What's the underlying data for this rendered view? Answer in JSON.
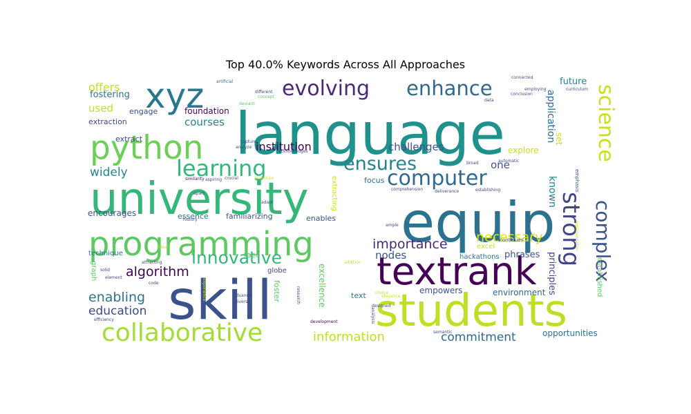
{
  "chart_data": {
    "type": "wordcloud",
    "title": "Top 40.0% Keywords Across All Approaches",
    "colormap": "viridis",
    "background": "#ffffff",
    "words": [
      {
        "text": "language",
        "weight": 1.0,
        "color": "#21918c"
      },
      {
        "text": "equip",
        "weight": 0.98,
        "color": "#2c728e"
      },
      {
        "text": "university",
        "weight": 0.92,
        "color": "#35b779"
      },
      {
        "text": "skill",
        "weight": 0.9,
        "color": "#3b528b"
      },
      {
        "text": "students",
        "weight": 0.84,
        "color": "#bddf26"
      },
      {
        "text": "textrank",
        "weight": 0.8,
        "color": "#440154"
      },
      {
        "text": "programming",
        "weight": 0.72,
        "color": "#5ec962"
      },
      {
        "text": "python",
        "weight": 0.68,
        "color": "#6ece58"
      },
      {
        "text": "xyz",
        "weight": 0.66,
        "color": "#2a788e"
      },
      {
        "text": "collaborative",
        "weight": 0.6,
        "color": "#a5db36"
      },
      {
        "text": "strong",
        "weight": 0.52,
        "color": "#414487"
      },
      {
        "text": "science",
        "weight": 0.5,
        "color": "#c8e020"
      },
      {
        "text": "complex",
        "weight": 0.44,
        "color": "#3b528b"
      },
      {
        "text": "learning",
        "weight": 0.44,
        "color": "#35b779"
      },
      {
        "text": "computer",
        "weight": 0.43,
        "color": "#31688e"
      },
      {
        "text": "evolving",
        "weight": 0.42,
        "color": "#482878"
      },
      {
        "text": "enhance",
        "weight": 0.42,
        "color": "#31688e"
      },
      {
        "text": "ensures",
        "weight": 0.4,
        "color": "#26828e"
      },
      {
        "text": "innovative",
        "weight": 0.37,
        "color": "#35b779"
      },
      {
        "text": "algorithm",
        "weight": 0.29,
        "color": "#440154"
      },
      {
        "text": "importance",
        "weight": 0.29,
        "color": "#482878"
      },
      {
        "text": "necessary",
        "weight": 0.29,
        "color": "#dde318"
      },
      {
        "text": "enabling",
        "weight": 0.28,
        "color": "#2c728e"
      },
      {
        "text": "education",
        "weight": 0.26,
        "color": "#3e4989"
      },
      {
        "text": "information",
        "weight": 0.27,
        "color": "#bddf26"
      },
      {
        "text": "commitment",
        "weight": 0.26,
        "color": "#31688e"
      },
      {
        "text": "institution",
        "weight": 0.23,
        "color": "#440154"
      },
      {
        "text": "widely",
        "weight": 0.24,
        "color": "#26828e"
      },
      {
        "text": "challenges",
        "weight": 0.22,
        "color": "#3b528b"
      },
      {
        "text": "courses",
        "weight": 0.21,
        "color": "#26828e"
      },
      {
        "text": "offers",
        "weight": 0.22,
        "color": "#c8e020"
      },
      {
        "text": "used",
        "weight": 0.2,
        "color": "#bddf26"
      },
      {
        "text": "one",
        "weight": 0.21,
        "color": "#3b528b"
      },
      {
        "text": "nodes",
        "weight": 0.2,
        "color": "#3b528b"
      },
      {
        "text": "application",
        "weight": 0.2,
        "color": "#31688e"
      },
      {
        "text": "known",
        "weight": 0.2,
        "color": "#26828e"
      },
      {
        "text": "principles",
        "weight": 0.18,
        "color": "#3e4989"
      },
      {
        "text": "fostering",
        "weight": 0.17,
        "color": "#2c728e"
      },
      {
        "text": "future",
        "weight": 0.17,
        "color": "#26828e"
      },
      {
        "text": "empowers",
        "weight": 0.16,
        "color": "#3b528b"
      },
      {
        "text": "environment",
        "weight": 0.16,
        "color": "#31688e"
      },
      {
        "text": "opportunities",
        "weight": 0.15,
        "color": "#2c728e"
      },
      {
        "text": "excellence",
        "weight": 0.16,
        "color": "#5ec962"
      },
      {
        "text": "phrases",
        "weight": 0.15,
        "color": "#3b528b"
      },
      {
        "text": "essence",
        "weight": 0.15,
        "color": "#2c728e"
      },
      {
        "text": "encourages",
        "weight": 0.15,
        "color": "#3b528b"
      },
      {
        "text": "familiarizing",
        "weight": 0.15,
        "color": "#3b528b"
      },
      {
        "text": "enables",
        "weight": 0.15,
        "color": "#3b528b"
      },
      {
        "text": "foundation",
        "weight": 0.14,
        "color": "#440154"
      },
      {
        "text": "engage",
        "weight": 0.14,
        "color": "#3e4989"
      },
      {
        "text": "extraction",
        "weight": 0.13,
        "color": "#3e4989"
      },
      {
        "text": "focus",
        "weight": 0.14,
        "color": "#2c728e"
      },
      {
        "text": "explore",
        "weight": 0.13,
        "color": "#c8e020"
      },
      {
        "text": "set",
        "weight": 0.13,
        "color": "#c8e020"
      },
      {
        "text": "extract",
        "weight": 0.12,
        "color": "#3e4989"
      },
      {
        "text": "face",
        "weight": 0.12,
        "color": "#5ec962"
      },
      {
        "text": "technique",
        "weight": 0.12,
        "color": "#2c728e"
      },
      {
        "text": "hackathons",
        "weight": 0.11,
        "color": "#2c728e"
      },
      {
        "text": "excel",
        "weight": 0.11,
        "color": "#c8e020"
      },
      {
        "text": "foster",
        "weight": 0.12,
        "color": "#5ec962"
      },
      {
        "text": "established",
        "weight": 0.11,
        "color": "#5ec962"
      },
      {
        "text": "globe",
        "weight": 0.11,
        "color": "#3e4989"
      },
      {
        "text": "graph",
        "weight": 0.1,
        "color": "#5ec962"
      },
      {
        "text": "text",
        "weight": 0.12,
        "color": "#2c728e"
      },
      {
        "text": "extracting",
        "weight": 0.1,
        "color": "#c8e020"
      },
      {
        "text": "emphasis",
        "weight": 0.08,
        "color": "#3b528b"
      },
      {
        "text": "continues",
        "weight": 0.07,
        "color": "#3b528b"
      },
      {
        "text": "representation",
        "weight": 0.06,
        "color": "#c8e020"
      },
      {
        "text": "experience",
        "weight": 0.07,
        "color": "#c8e020"
      },
      {
        "text": "connected",
        "weight": 0.06,
        "color": "#3b528b"
      },
      {
        "text": "employing",
        "weight": 0.06,
        "color": "#3e4989"
      },
      {
        "text": "conclusion",
        "weight": 0.06,
        "color": "#3e4989"
      },
      {
        "text": "curriculum",
        "weight": 0.06,
        "color": "#3e4989"
      },
      {
        "text": "artificial",
        "weight": 0.06,
        "color": "#2c728e"
      },
      {
        "text": "different",
        "weight": 0.06,
        "color": "#3e4989"
      },
      {
        "text": "concept",
        "weight": 0.06,
        "color": "#5ec962"
      },
      {
        "text": "deviant",
        "weight": 0.06,
        "color": "#5ec962"
      },
      {
        "text": "capture",
        "weight": 0.06,
        "color": "#3e4989"
      },
      {
        "text": "analyze",
        "weight": 0.06,
        "color": "#3e4989"
      },
      {
        "text": "acknowledges",
        "weight": 0.06,
        "color": "#3e4989"
      },
      {
        "text": "similarity",
        "weight": 0.06,
        "color": "#440154"
      },
      {
        "text": "aspiring",
        "weight": 0.06,
        "color": "#3e4989"
      },
      {
        "text": "crucial",
        "weight": 0.06,
        "color": "#3e4989"
      },
      {
        "text": "proactive",
        "weight": 0.06,
        "color": "#c8e020"
      },
      {
        "text": "adapt",
        "weight": 0.06,
        "color": "#3e4989"
      },
      {
        "text": "broad",
        "weight": 0.06,
        "color": "#3e4989"
      },
      {
        "text": "automatic",
        "weight": 0.06,
        "color": "#3e4989"
      },
      {
        "text": "comprehension",
        "weight": 0.06,
        "color": "#3e4989"
      },
      {
        "text": "deliverance",
        "weight": 0.06,
        "color": "#3e4989"
      },
      {
        "text": "establishing",
        "weight": 0.06,
        "color": "#3e4989"
      },
      {
        "text": "apart",
        "weight": 0.06,
        "color": "#3e4989"
      },
      {
        "text": "history",
        "weight": 0.06,
        "color": "#3e4989"
      },
      {
        "text": "ideal",
        "weight": 0.06,
        "color": "#c8e020"
      },
      {
        "text": "attracting",
        "weight": 0.06,
        "color": "#3e4989"
      },
      {
        "text": "solid",
        "weight": 0.06,
        "color": "#3e4989"
      },
      {
        "text": "element",
        "weight": 0.06,
        "color": "#3e4989"
      },
      {
        "text": "efficiency",
        "weight": 0.06,
        "color": "#3e4989"
      },
      {
        "text": "code",
        "weight": 0.06,
        "color": "#3e4989"
      },
      {
        "text": "research",
        "weight": 0.06,
        "color": "#3e4989"
      },
      {
        "text": "advance",
        "weight": 0.06,
        "color": "#3e4989"
      },
      {
        "text": "diverse",
        "weight": 0.06,
        "color": "#3e4989"
      },
      {
        "text": "addition",
        "weight": 0.06,
        "color": "#c8e020"
      },
      {
        "text": "designed",
        "weight": 0.06,
        "color": "#3e4989"
      },
      {
        "text": "choice",
        "weight": 0.06,
        "color": "#c8e020"
      },
      {
        "text": "elegance",
        "weight": 0.06,
        "color": "#c8e020"
      },
      {
        "text": "analysis",
        "weight": 0.06,
        "color": "#3e4989"
      },
      {
        "text": "development",
        "weight": 0.06,
        "color": "#440154"
      },
      {
        "text": "semantic",
        "weight": 0.06,
        "color": "#3e4989"
      },
      {
        "text": "ample",
        "weight": 0.06,
        "color": "#3e4989"
      },
      {
        "text": "data",
        "weight": 0.06,
        "color": "#3e4989"
      }
    ]
  }
}
